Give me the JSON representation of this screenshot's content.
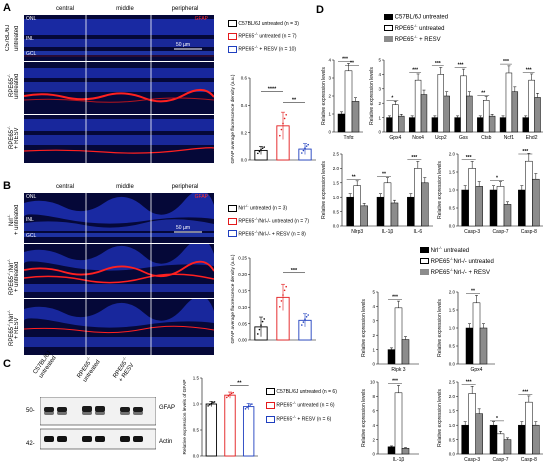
{
  "panels": {
    "A": {
      "letter": "A",
      "columns": [
        "central",
        "middle",
        "peripheral"
      ],
      "stain": "GFAP",
      "layers": [
        "ONL",
        "INL",
        "GCL"
      ],
      "scale": "50 µm",
      "rows": [
        "C57BL/6J untreated",
        "RPE65-/- untreated",
        "RPE65-/- + RESV"
      ],
      "row_labels": {
        "r1a": "C57BL/6J",
        "r1b": "untreated",
        "r2a": "RPE65",
        "r2sup": "-/-",
        "r2b": "untreated",
        "r3a": "RPE65",
        "r3sup": "-/-",
        "r3b": "+ RESV"
      },
      "legend": [
        {
          "prefix": "C57BL/6J untreated",
          "sup": "",
          "suffix": " (n = 3)"
        },
        {
          "prefix": "RPE65",
          "sup": "-/-",
          "suffix": " untreated (n = 7)"
        },
        {
          "prefix": "RPE65",
          "sup": "-/-",
          "suffix": " + RESV (n = 10)"
        }
      ],
      "sig": "****",
      "sig2": "**"
    },
    "B": {
      "letter": "B",
      "columns": [
        "central",
        "middle",
        "peripheral"
      ],
      "stain": "GFAP",
      "layers": [
        "ONL",
        "INL",
        "GCL"
      ],
      "scale": "50 µm",
      "row_labels": {
        "r1a": "Nrl",
        "r1sup": "-/-",
        "r1b": "+ untreated",
        "r2a": "RPE65",
        "r2sup": "-/-",
        "r2b": "/Nrl",
        "r2sup2": "-/-",
        "r2c": "+ untreated",
        "r3a": "RPE65",
        "r3sup": "-/-",
        "r3b": "/Nrl",
        "r3sup2": "-/-",
        "r3c": "+ RESV"
      },
      "legend": [
        {
          "prefix": "Nrl",
          "sup": "-/-",
          "suffix": " untreated (n = 3)"
        },
        {
          "prefix": "RPE65",
          "sup": "-/-",
          "suffix": "/Nrl-/- untreated (n = 7)"
        },
        {
          "prefix": "RPE65",
          "sup": "-/-",
          "suffix": "/Nrl-/- + RESV (n = 8)"
        }
      ],
      "sig": "***"
    },
    "C": {
      "letter": "C",
      "lanes": [
        "C57BL/6J untreated",
        "RPE65-/- untreated",
        "RPE65-/- + RESV"
      ],
      "lane_labels": {
        "l1a": "C57BL/6J",
        "l1b": "untreated",
        "l2a": "RPE65",
        "l2sup": "-/-",
        "l2b": "untreated",
        "l3a": "RPE65",
        "l3sup": "-/-",
        "l3b": "+ RESV"
      },
      "bands": [
        {
          "mw": "50-",
          "name": "GFAP"
        },
        {
          "mw": "42-",
          "name": "Actin"
        }
      ],
      "legend": [
        {
          "prefix": "C57BL/6J untreated",
          "sup": "",
          "suffix": " (n = 6)"
        },
        {
          "prefix": "RPE65",
          "sup": "-/-",
          "suffix": " untreated (n = 6)"
        },
        {
          "prefix": "RPE65",
          "sup": "-/-",
          "suffix": " + RESV (n = 6)"
        }
      ],
      "sig": "**"
    },
    "D": {
      "letter": "D",
      "legend1": [
        {
          "prefix": "C57BL/6J untreated",
          "sup": "",
          "suffix": ""
        },
        {
          "prefix": "RPE65",
          "sup": "-/-",
          "suffix": " untreated"
        },
        {
          "prefix": "RPE65",
          "sup": "-/-",
          "suffix": " + RESV"
        }
      ],
      "legend2": [
        {
          "prefix": "Nrl",
          "sup": "-/-",
          "suffix": " untreated"
        },
        {
          "prefix": "RPE65",
          "sup": "-/-",
          "suffix": "Nrl-/- untreated"
        },
        {
          "prefix": "RPE65",
          "sup": "-/-",
          "suffix": "Nrl-/- + RESV"
        }
      ]
    }
  },
  "chart_data": [
    {
      "id": "A-bar",
      "type": "bar",
      "ylabel": "GFAP average fluorescence density (a.u.)",
      "ylim": [
        0,
        0.6
      ],
      "yticks": [
        "0.0",
        "0.2",
        "0.4",
        "0.6"
      ],
      "categories": [
        "C57BL/6J untreated",
        "RPE65-/- untreated",
        "RPE65-/- + RESV"
      ],
      "values": [
        0.07,
        0.25,
        0.08
      ],
      "errors": [
        0.03,
        0.1,
        0.04
      ],
      "colors": [
        "#000000",
        "#e31a1c",
        "#1f3fbf"
      ],
      "significance": [
        "****",
        "**"
      ]
    },
    {
      "id": "B-bar",
      "type": "bar",
      "ylabel": "GFAP average fluorescence density (a.u.)",
      "ylim": [
        0,
        0.25
      ],
      "yticks": [
        "0.00",
        "0.05",
        "0.10",
        "0.15",
        "0.20",
        "0.25"
      ],
      "categories": [
        "Nrl-/- untreated",
        "RPE65-/-/Nrl-/- untreated",
        "RPE65-/-/Nrl-/- + RESV"
      ],
      "values": [
        0.04,
        0.13,
        0.06
      ],
      "errors": [
        0.03,
        0.04,
        0.02
      ],
      "colors": [
        "#000000",
        "#e31a1c",
        "#1f3fbf"
      ],
      "significance": [
        "***"
      ]
    },
    {
      "id": "C-bar",
      "type": "bar",
      "ylabel": "Relative expression levels of GFAP",
      "ylim": [
        0,
        1.5
      ],
      "yticks": [
        "0.0",
        "0.5",
        "1.0",
        "1.5"
      ],
      "categories": [
        "C57BL/6J untreated",
        "RPE65-/- untreated",
        "RPE65-/- + RESV"
      ],
      "values": [
        1.0,
        1.17,
        0.95
      ],
      "errors": [
        0.05,
        0.06,
        0.06
      ],
      "colors": [
        "#000000",
        "#e31a1c",
        "#1f3fbf"
      ],
      "significance": [
        "**"
      ]
    },
    {
      "id": "D1",
      "type": "bar",
      "ylabel": "Relative expression levels",
      "ylim": [
        0,
        4
      ],
      "yticks": [
        "0",
        "1",
        "2",
        "3",
        "4"
      ],
      "categories": [
        "Tnfα"
      ],
      "series": [
        {
          "values": [
            1.0
          ]
        },
        {
          "values": [
            3.4
          ]
        },
        {
          "values": [
            1.7
          ]
        }
      ],
      "significance": [
        "***",
        "**"
      ]
    },
    {
      "id": "D2",
      "type": "bar",
      "ylabel": "Relative expression levels",
      "ylim": [
        0,
        5
      ],
      "yticks": [
        "0",
        "1",
        "2",
        "3",
        "4",
        "5"
      ],
      "categories": [
        "Gpx4",
        "Nox4",
        "Ucp2",
        "Gss",
        "Ctsb",
        "Ncf1",
        "Ehd2"
      ],
      "series": [
        {
          "values": [
            1.0,
            1.0,
            1.0,
            1.0,
            1.0,
            1.0,
            1.0
          ]
        },
        {
          "values": [
            1.9,
            3.6,
            4.0,
            3.9,
            2.2,
            4.1,
            3.6
          ]
        },
        {
          "values": [
            1.1,
            2.6,
            2.5,
            2.5,
            1.1,
            2.8,
            2.4
          ]
        }
      ],
      "significance": [
        "*",
        "***",
        "***",
        "***",
        "**",
        "***",
        "***"
      ]
    },
    {
      "id": "D3",
      "type": "bar",
      "ylabel": "Relative expression levels",
      "ylim": [
        0,
        2.5
      ],
      "yticks": [
        "0.0",
        "0.5",
        "1.0",
        "1.5",
        "2.0",
        "2.5"
      ],
      "categories": [
        "Nlrp3",
        "IL-1β",
        "IL-6"
      ],
      "series": [
        {
          "values": [
            1.0,
            1.0,
            1.0
          ]
        },
        {
          "values": [
            1.4,
            1.5,
            2.0
          ]
        },
        {
          "values": [
            0.7,
            0.8,
            1.5
          ]
        }
      ],
      "significance": [
        "**",
        "**",
        "***"
      ]
    },
    {
      "id": "D4",
      "type": "bar",
      "ylabel": "Relative expression levels",
      "ylim": [
        0,
        2.0
      ],
      "yticks": [
        "0.0",
        "0.5",
        "1.0",
        "1.5",
        "2.0"
      ],
      "categories": [
        "Casp-3",
        "Casp-7",
        "Casp-8"
      ],
      "series": [
        {
          "values": [
            1.0,
            1.0,
            1.0
          ]
        },
        {
          "values": [
            1.6,
            1.1,
            1.8
          ]
        },
        {
          "values": [
            1.1,
            0.6,
            1.3
          ]
        }
      ],
      "significance": [
        "***",
        "*",
        "***"
      ]
    },
    {
      "id": "D5",
      "type": "bar",
      "ylabel": "Relative expression levels",
      "ylim": [
        0,
        5
      ],
      "yticks": [
        "0",
        "1",
        "2",
        "3",
        "4",
        "5"
      ],
      "categories": [
        "Ripk 3"
      ],
      "series": [
        {
          "values": [
            1.0
          ]
        },
        {
          "values": [
            3.9
          ]
        },
        {
          "values": [
            1.7
          ]
        }
      ],
      "significance": [
        "***"
      ]
    },
    {
      "id": "D6",
      "type": "bar",
      "ylabel": "Relative expression levels",
      "ylim": [
        0,
        2.0
      ],
      "yticks": [
        "0.0",
        "0.5",
        "1.0",
        "1.5",
        "2.0"
      ],
      "categories": [
        "Gpx4"
      ],
      "series": [
        {
          "values": [
            1.0
          ]
        },
        {
          "values": [
            1.7
          ]
        },
        {
          "values": [
            1.0
          ]
        }
      ],
      "significance": [
        "**"
      ]
    },
    {
      "id": "D7",
      "type": "bar",
      "ylabel": "Relative expression levels",
      "ylim": [
        0,
        10
      ],
      "yticks": [
        "0",
        "2",
        "4",
        "6",
        "8",
        "10"
      ],
      "categories": [
        "IL-1β"
      ],
      "series": [
        {
          "values": [
            1.0
          ]
        },
        {
          "values": [
            8.5
          ]
        },
        {
          "values": [
            0.8
          ]
        }
      ],
      "significance": [
        "***"
      ]
    },
    {
      "id": "D8",
      "type": "bar",
      "ylabel": "Relative expression levels",
      "ylim": [
        0,
        2.5
      ],
      "yticks": [
        "0.0",
        "0.5",
        "1.0",
        "1.5",
        "2.0",
        "2.5"
      ],
      "categories": [
        "Casp-3",
        "Casp-7",
        "Casp-8"
      ],
      "series": [
        {
          "values": [
            1.0,
            1.0,
            1.0
          ]
        },
        {
          "values": [
            2.1,
            0.7,
            1.8
          ]
        },
        {
          "values": [
            1.4,
            0.5,
            1.0
          ]
        }
      ],
      "significance": [
        "***",
        "*",
        "***"
      ]
    }
  ]
}
